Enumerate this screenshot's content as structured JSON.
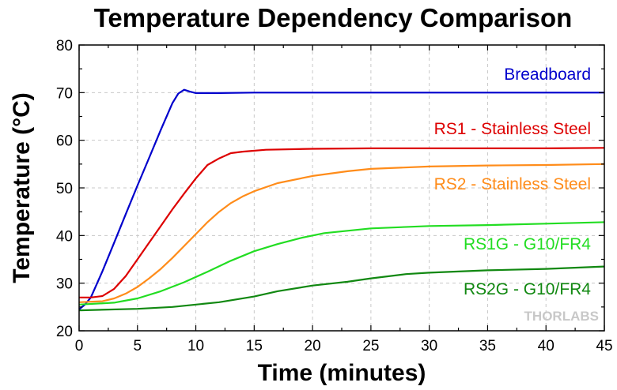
{
  "chart_data": {
    "type": "line",
    "title": "Temperature Dependency Comparison",
    "xlabel": "Time (minutes)",
    "ylabel": "Temperature (°C)",
    "xlim": [
      0,
      45
    ],
    "ylim": [
      20,
      80
    ],
    "xticks": [
      0,
      5,
      10,
      15,
      20,
      25,
      30,
      35,
      40,
      45
    ],
    "yticks": [
      20,
      30,
      40,
      50,
      60,
      70,
      80
    ],
    "grid": true,
    "watermark": "THORLABS",
    "series": [
      {
        "name": "Breadboard",
        "color": "#0000cc",
        "x": [
          0,
          0.5,
          1,
          2,
          3,
          4,
          5,
          6,
          7,
          8,
          8.5,
          9,
          9.5,
          10,
          12,
          15,
          20,
          25,
          30,
          35,
          40,
          45
        ],
        "y": [
          24.5,
          25.5,
          27,
          32.5,
          38.5,
          44.5,
          50.5,
          56.3,
          62.2,
          67.8,
          69.8,
          70.6,
          70.2,
          69.9,
          69.9,
          70,
          70,
          70,
          70,
          70,
          70,
          70
        ]
      },
      {
        "name": "RS1 - Stainless Steel",
        "color": "#dd0000",
        "x": [
          0,
          1,
          2,
          3,
          4,
          5,
          6,
          7,
          8,
          9,
          10,
          11,
          12,
          13,
          14,
          16,
          20,
          25,
          30,
          35,
          40,
          45
        ],
        "y": [
          27,
          27,
          27.3,
          28.8,
          31.5,
          35,
          38.5,
          42,
          45.5,
          48.8,
          52,
          54.8,
          56.2,
          57.3,
          57.6,
          58,
          58.2,
          58.3,
          58.3,
          58.3,
          58.3,
          58.4
        ]
      },
      {
        "name": "RS2 - Stainless Steel",
        "color": "#ff8c1a",
        "x": [
          0,
          2,
          3,
          4,
          5,
          6,
          7,
          8,
          9,
          10,
          11,
          12,
          13,
          14,
          15,
          17,
          20,
          23,
          25,
          30,
          35,
          40,
          45
        ],
        "y": [
          26,
          26.2,
          26.8,
          27.8,
          29.2,
          31,
          33,
          35.3,
          37.8,
          40.3,
          42.8,
          45,
          46.8,
          48.2,
          49.3,
          51,
          52.5,
          53.5,
          54,
          54.5,
          54.7,
          54.8,
          55
        ]
      },
      {
        "name": "RS1G - G10/FR4",
        "color": "#22dd22",
        "x": [
          0,
          3,
          5,
          7,
          9,
          11,
          13,
          15,
          17,
          19,
          21,
          23,
          25,
          30,
          35,
          40,
          45
        ],
        "y": [
          25.5,
          25.9,
          26.8,
          28.3,
          30.2,
          32.4,
          34.7,
          36.7,
          38.2,
          39.5,
          40.5,
          41,
          41.5,
          42,
          42.2,
          42.5,
          42.8
        ]
      },
      {
        "name": "RS2G - G10/FR4",
        "color": "#118811",
        "x": [
          0,
          5,
          8,
          10,
          12,
          15,
          17,
          20,
          23,
          25,
          28,
          30,
          35,
          40,
          45
        ],
        "y": [
          24.3,
          24.6,
          25,
          25.5,
          26,
          27.2,
          28.3,
          29.5,
          30.3,
          31,
          31.9,
          32.2,
          32.7,
          33,
          33.5
        ]
      }
    ]
  }
}
